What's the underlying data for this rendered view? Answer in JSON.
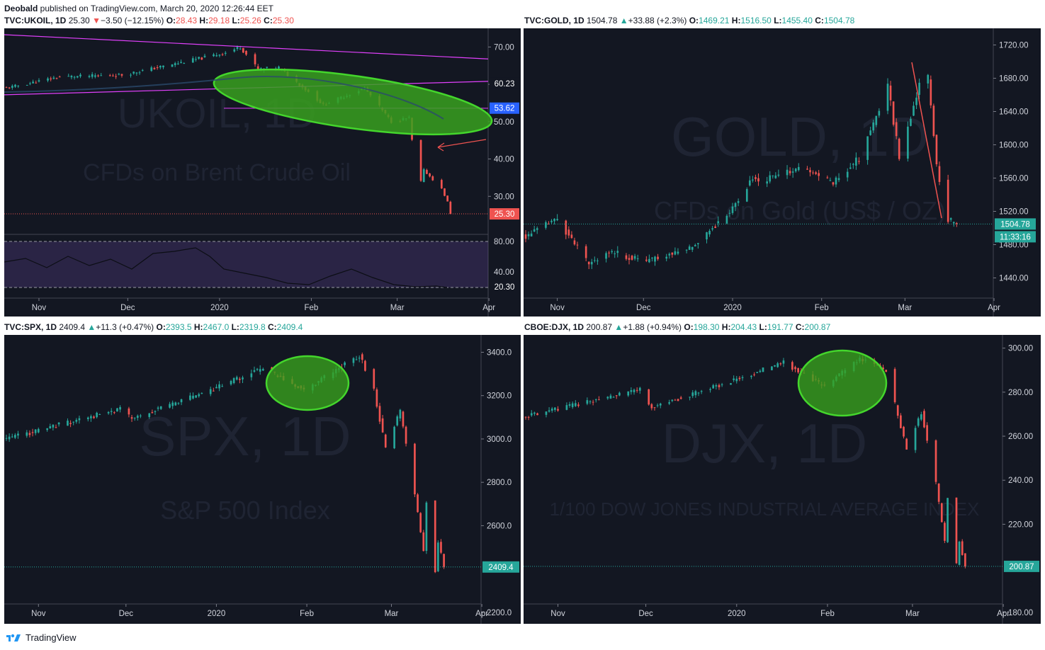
{
  "header": {
    "author": "Deobald",
    "rest": " published on TradingView.com, March 20, 2020 12:26:44 EET"
  },
  "footer": {
    "brand": "TradingView"
  },
  "colors": {
    "up": "#26a69a",
    "down": "#ef5350",
    "background": "#131722",
    "highlight": "#44d62c"
  },
  "month_labels": [
    "Nov",
    "Dec",
    "2020",
    "Feb",
    "Mar",
    "Apr"
  ],
  "panels": [
    {
      "legend": {
        "symbol": "TVC:UKOIL, 1D",
        "last": "25.30",
        "arrow": "▼",
        "change": "−3.50 (−12.15%)",
        "o": "28.43",
        "h": "29.18",
        "l": "25.26",
        "c": "25.30",
        "dir": "dn"
      },
      "watermark": [
        "UKOIL, 1D",
        "CFDs on Brent Crude Oil"
      ],
      "price_labels": [
        "70.00",
        "60.00",
        "50.00",
        "40.00",
        "30.00"
      ],
      "badges": [
        "60.23",
        "53.62",
        "25.30"
      ],
      "rsi_labels": [
        "80.00",
        "40.00"
      ],
      "rsi_badge": "20.30"
    },
    {
      "legend": {
        "symbol": "TVC:GOLD, 1D",
        "last": "1504.78",
        "arrow": "▲",
        "change": "+33.88 (+2.3%)",
        "o": "1469.21",
        "h": "1516.50",
        "l": "1455.40",
        "c": "1504.78",
        "dir": "up"
      },
      "watermark": [
        "GOLD, 1D",
        "CFDs on Gold (US$ / OZ)"
      ],
      "price_labels": [
        "1720.00",
        "1680.00",
        "1640.00",
        "1600.00",
        "1560.00",
        "1520.00",
        "1480.00",
        "1440.00"
      ],
      "badges": [
        "1504.78",
        "11:33:16"
      ]
    },
    {
      "legend": {
        "symbol": "TVC:SPX, 1D",
        "last": "2409.4",
        "arrow": "▲",
        "change": "+11.3 (+0.47%)",
        "o": "2393.5",
        "h": "2467.0",
        "l": "2319.8",
        "c": "2409.4",
        "dir": "up"
      },
      "watermark": [
        "SPX, 1D",
        "S&P 500 Index"
      ],
      "price_labels": [
        "3400.0",
        "3200.0",
        "3000.0",
        "2800.0",
        "2600.0",
        "2200.0"
      ],
      "badges": [
        "2409.4"
      ]
    },
    {
      "legend": {
        "symbol": "CBOE:DJX, 1D",
        "last": "200.87",
        "arrow": "▲",
        "change": "+1.88 (+0.94%)",
        "o": "198.30",
        "h": "204.43",
        "l": "191.77",
        "c": "200.87",
        "dir": "up"
      },
      "watermark": [
        "DJX, 1D",
        "1/100 DOW JONES INDUSTRIAL AVERAGE INDEX"
      ],
      "price_labels": [
        "300.00",
        "280.00",
        "260.00",
        "240.00",
        "220.00",
        "180.00"
      ],
      "badges": [
        "200.87"
      ]
    }
  ],
  "chart_data": [
    {
      "type": "candlestick",
      "title": "TVC:UKOIL, 1D",
      "x_range": [
        "2019-10-21",
        "2020-03-31"
      ],
      "ylim": [
        20,
        75
      ],
      "anchors": [
        {
          "date": "2019-10-21",
          "price": 59
        },
        {
          "date": "2019-11-08",
          "price": 62
        },
        {
          "date": "2019-11-29",
          "price": 62.5
        },
        {
          "date": "2019-12-20",
          "price": 66
        },
        {
          "date": "2020-01-03",
          "price": 68.5
        },
        {
          "date": "2020-01-08",
          "price": 70
        },
        {
          "date": "2020-01-14",
          "price": 64
        },
        {
          "date": "2020-01-21",
          "price": 64.5
        },
        {
          "date": "2020-01-31",
          "price": 58
        },
        {
          "date": "2020-02-05",
          "price": 54.5
        },
        {
          "date": "2020-02-19",
          "price": 59
        },
        {
          "date": "2020-02-28",
          "price": 50
        },
        {
          "date": "2020-03-05",
          "price": 51
        },
        {
          "date": "2020-03-06",
          "price": 45
        },
        {
          "date": "2020-03-09",
          "price": 34
        },
        {
          "date": "2020-03-10",
          "price": 37
        },
        {
          "date": "2020-03-16",
          "price": 32
        },
        {
          "date": "2020-03-18",
          "price": 28.5
        },
        {
          "date": "2020-03-19",
          "price": 25.3
        }
      ],
      "rsi": {
        "ylim": [
          0,
          100
        ],
        "levels": [
          80,
          20
        ],
        "last": 20.3
      },
      "annotations": [
        "green ellipse around late Jan–early Mar decline",
        "magenta trend channel",
        "red arrow pointing down"
      ]
    },
    {
      "type": "candlestick",
      "title": "TVC:GOLD, 1D",
      "x_range": [
        "2019-10-21",
        "2020-03-31"
      ],
      "ylim": [
        1420,
        1740
      ],
      "anchors": [
        {
          "date": "2019-10-21",
          "price": 1490
        },
        {
          "date": "2019-11-01",
          "price": 1511
        },
        {
          "date": "2019-11-12",
          "price": 1456
        },
        {
          "date": "2019-11-18",
          "price": 1472
        },
        {
          "date": "2019-12-02",
          "price": 1460
        },
        {
          "date": "2019-12-17",
          "price": 1476
        },
        {
          "date": "2019-12-31",
          "price": 1519
        },
        {
          "date": "2020-01-08",
          "price": 1560
        },
        {
          "date": "2020-01-10",
          "price": 1555
        },
        {
          "date": "2020-01-24",
          "price": 1572
        },
        {
          "date": "2020-02-05",
          "price": 1555
        },
        {
          "date": "2020-02-14",
          "price": 1584
        },
        {
          "date": "2020-02-21",
          "price": 1643
        },
        {
          "date": "2020-02-24",
          "price": 1672
        },
        {
          "date": "2020-02-28",
          "price": 1585
        },
        {
          "date": "2020-03-06",
          "price": 1673
        },
        {
          "date": "2020-03-09",
          "price": 1680
        },
        {
          "date": "2020-03-12",
          "price": 1576
        },
        {
          "date": "2020-03-16",
          "price": 1510
        },
        {
          "date": "2020-03-19",
          "price": 1504.78
        }
      ]
    },
    {
      "type": "candlestick",
      "title": "TVC:SPX, 1D",
      "x_range": [
        "2019-10-21",
        "2020-03-31"
      ],
      "ylim": [
        2180,
        3480
      ],
      "anchors": [
        {
          "date": "2019-10-21",
          "price": 3000
        },
        {
          "date": "2019-11-29",
          "price": 3140
        },
        {
          "date": "2019-12-03",
          "price": 3093
        },
        {
          "date": "2019-12-31",
          "price": 3230
        },
        {
          "date": "2020-01-17",
          "price": 3329
        },
        {
          "date": "2020-01-31",
          "price": 3225
        },
        {
          "date": "2020-02-19",
          "price": 3386
        },
        {
          "date": "2020-02-24",
          "price": 3225
        },
        {
          "date": "2020-02-28",
          "price": 2954
        },
        {
          "date": "2020-03-04",
          "price": 3130
        },
        {
          "date": "2020-03-09",
          "price": 2746
        },
        {
          "date": "2020-03-12",
          "price": 2480
        },
        {
          "date": "2020-03-13",
          "price": 2711
        },
        {
          "date": "2020-03-16",
          "price": 2386
        },
        {
          "date": "2020-03-17",
          "price": 2529
        },
        {
          "date": "2020-03-19",
          "price": 2409.4
        }
      ],
      "annotations": [
        "green ellipse around late Jan–Feb top"
      ]
    },
    {
      "type": "candlestick",
      "title": "CBOE:DJX, 1D",
      "x_range": [
        "2019-10-21",
        "2020-03-31"
      ],
      "ylim": [
        178,
        306
      ],
      "anchors": [
        {
          "date": "2019-10-21",
          "price": 269
        },
        {
          "date": "2019-11-29",
          "price": 281
        },
        {
          "date": "2019-12-03",
          "price": 273
        },
        {
          "date": "2019-12-31",
          "price": 285.4
        },
        {
          "date": "2020-01-17",
          "price": 293.5
        },
        {
          "date": "2020-01-31",
          "price": 282.5
        },
        {
          "date": "2020-02-12",
          "price": 295.5
        },
        {
          "date": "2020-02-21",
          "price": 289.9
        },
        {
          "date": "2020-02-28",
          "price": 254.1
        },
        {
          "date": "2020-03-04",
          "price": 270.9
        },
        {
          "date": "2020-03-09",
          "price": 238.5
        },
        {
          "date": "2020-03-12",
          "price": 212
        },
        {
          "date": "2020-03-13",
          "price": 231.9
        },
        {
          "date": "2020-03-16",
          "price": 201.9
        },
        {
          "date": "2020-03-17",
          "price": 212.4
        },
        {
          "date": "2020-03-19",
          "price": 200.87
        }
      ],
      "annotations": [
        "green ellipse around late Jan–Feb top"
      ]
    }
  ]
}
